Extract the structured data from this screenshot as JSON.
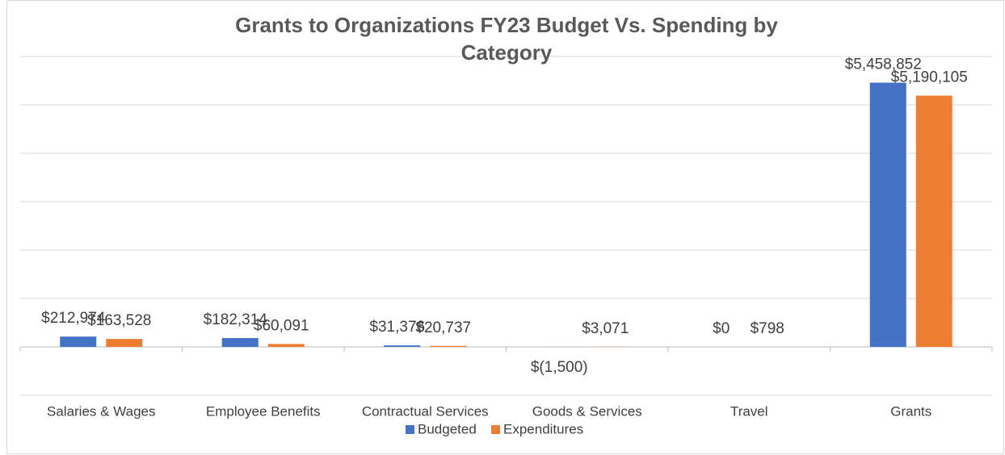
{
  "chart_data": {
    "type": "bar",
    "title": "Grants to Organizations FY23 Budget Vs. Spending by Category",
    "categories": [
      "Salaries & Wages",
      "Employee Benefits",
      "Contractual Services",
      "Goods & Services",
      "Travel",
      "Grants"
    ],
    "series": [
      {
        "name": "Budgeted",
        "color": "#4472c4",
        "values": [
          212974,
          182314,
          31376,
          -1500,
          0,
          5458852
        ],
        "value_labels": [
          "$212,974",
          "$182,314",
          "$31,376",
          "$(1,500)",
          "$0",
          "$5,458,852"
        ]
      },
      {
        "name": "Expenditures",
        "color": "#ed7d31",
        "values": [
          163528,
          60091,
          20737,
          3071,
          798,
          5190105
        ],
        "value_labels": [
          "$163,528",
          "$60,091",
          "$20,737",
          "$3,071",
          "$798",
          "$5,190,105"
        ]
      }
    ],
    "ylim": [
      -1000000,
      6000000
    ],
    "yticks": [
      -1000000,
      0,
      1000000,
      2000000,
      3000000,
      4000000,
      5000000,
      6000000
    ],
    "grid": true,
    "legend": "bottom"
  }
}
